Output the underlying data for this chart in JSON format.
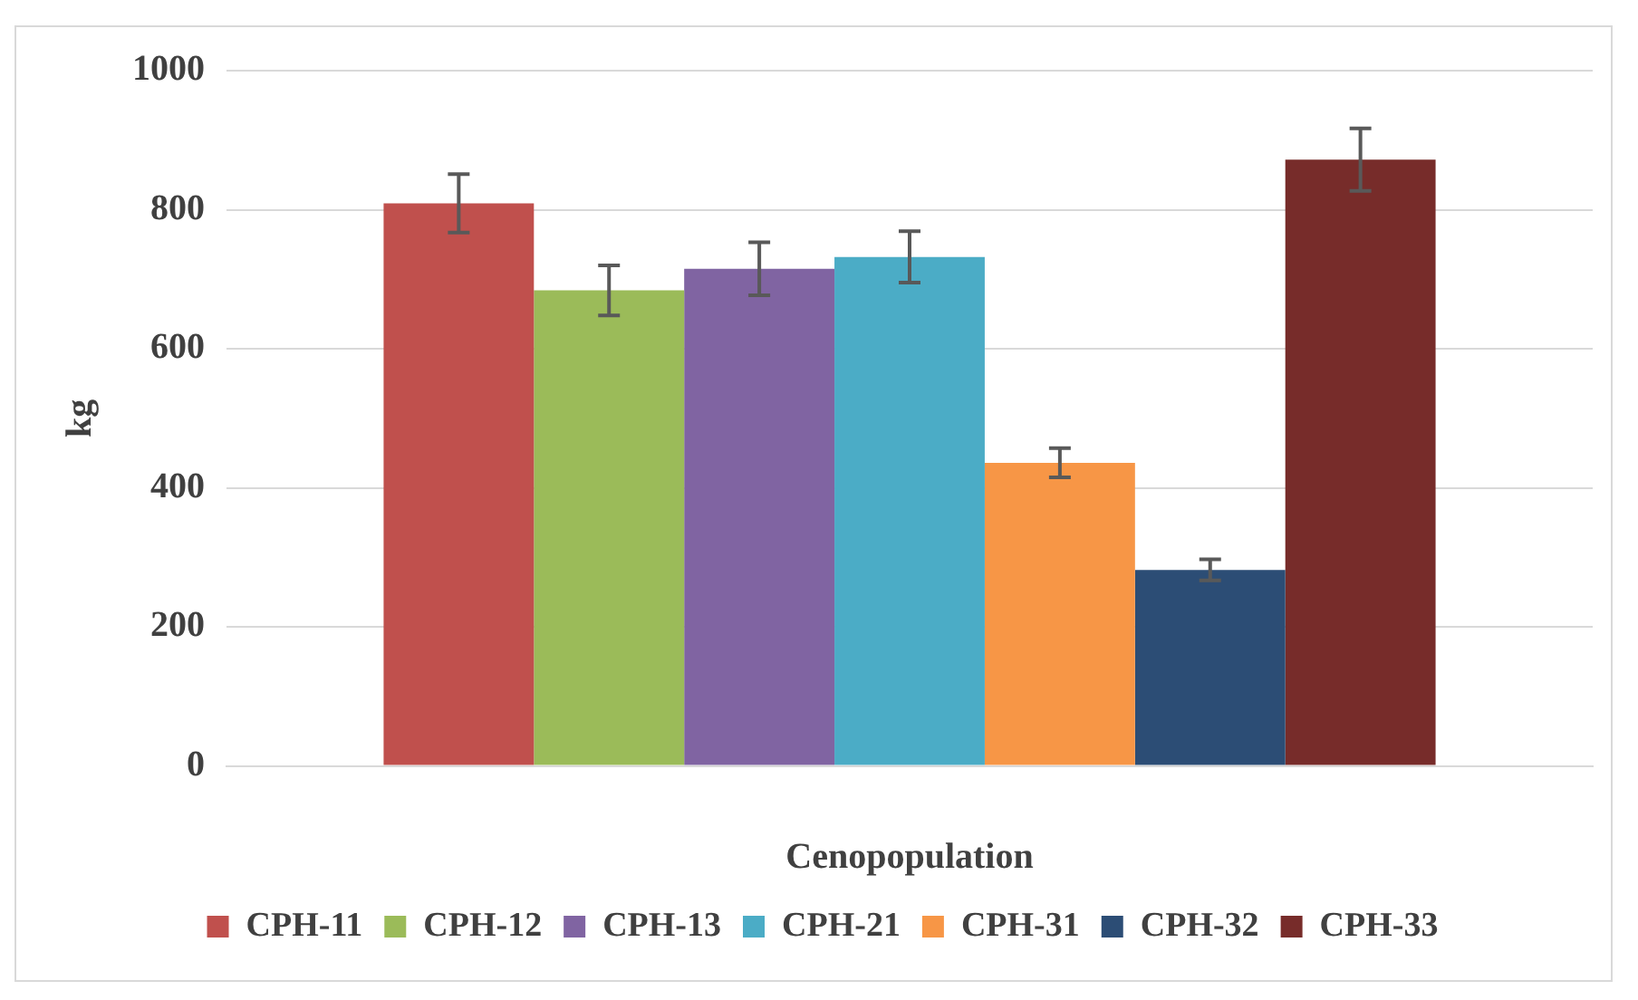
{
  "chart_data": {
    "type": "bar",
    "xlabel": "Cenopopulation",
    "ylabel": "kg",
    "categories": [
      null
    ],
    "ylim": [
      0,
      1000
    ],
    "yticks": [
      0,
      200,
      400,
      600,
      800,
      1000
    ],
    "grid": "y",
    "legend": "bottom",
    "series": [
      {
        "name": "CPH-11",
        "color": "#c0504d",
        "values": [
          809
        ],
        "errors": [
          42
        ]
      },
      {
        "name": "CPH-12",
        "color": "#9bbb59",
        "values": [
          684
        ],
        "errors": [
          36
        ]
      },
      {
        "name": "CPH-13",
        "color": "#8064a2",
        "values": [
          715
        ],
        "errors": [
          38
        ]
      },
      {
        "name": "CPH-21",
        "color": "#4bacc6",
        "values": [
          732
        ],
        "errors": [
          37
        ]
      },
      {
        "name": "CPH-31",
        "color": "#f79646",
        "values": [
          436
        ],
        "errors": [
          21
        ]
      },
      {
        "name": "CPH-32",
        "color": "#2c4d75",
        "values": [
          282
        ],
        "errors": [
          15
        ]
      },
      {
        "name": "CPH-33",
        "color": "#772c2a",
        "values": [
          872
        ],
        "errors": [
          45
        ]
      }
    ]
  }
}
